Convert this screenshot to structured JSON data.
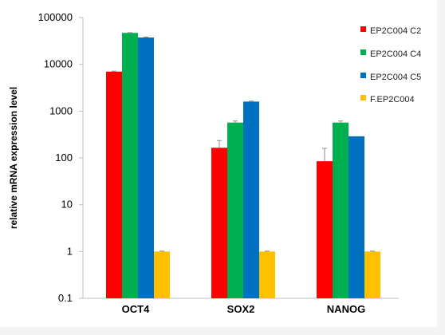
{
  "chart_data": {
    "type": "bar",
    "scale": "log",
    "ylabel": "relative mRNA expression level",
    "xlabel": "",
    "title": "",
    "ylim": [
      0.1,
      100000
    ],
    "yticks": [
      {
        "value": 0.1,
        "label": "0.1"
      },
      {
        "value": 1,
        "label": "1"
      },
      {
        "value": 10,
        "label": "10"
      },
      {
        "value": 100,
        "label": "100"
      },
      {
        "value": 1000,
        "label": "1000"
      },
      {
        "value": 10000,
        "label": "10000"
      },
      {
        "value": 100000,
        "label": "100000"
      }
    ],
    "categories": [
      "OCT4",
      "SOX2",
      "NANOG"
    ],
    "grid": false,
    "legend_position": "top-right",
    "series": [
      {
        "name": "EP2C004 C2",
        "color": "#ff0000",
        "values": [
          7000,
          165,
          85
        ],
        "error": [
          150,
          70,
          75
        ]
      },
      {
        "name": "EP2C004 C4",
        "color": "#00b050",
        "values": [
          47000,
          570,
          570
        ],
        "error": [
          600,
          45,
          45
        ]
      },
      {
        "name": "EP2C004 C5",
        "color": "#0070c0",
        "values": [
          37500,
          1600,
          290
        ],
        "error": [
          800,
          40,
          0
        ]
      },
      {
        "name": "F.EP2C004",
        "color": "#ffc000",
        "values": [
          1,
          1,
          1
        ],
        "error": [
          0.02,
          0.02,
          0.02
        ]
      }
    ]
  }
}
